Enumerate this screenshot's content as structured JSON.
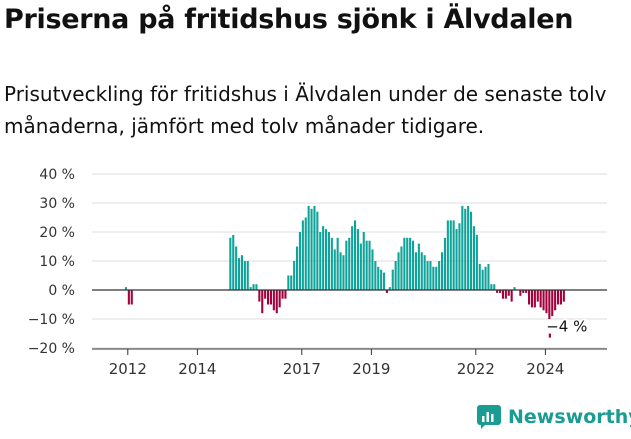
{
  "title": "Priserna på fritidshus sjönk i Älvdalen",
  "subtitle": "Prisutveckling för fritidshus i Älvdalen under de senaste tolv månaderna, jämfört med tolv månader tidigare.",
  "brand": {
    "name": "Newsworthy",
    "icon": "newsworthy-logo-icon"
  },
  "colors": {
    "positive": "#0fa39a",
    "negative": "#a4003d",
    "axis": "#333333",
    "grid": "#dddddd"
  },
  "chart_data": {
    "type": "bar",
    "title": "Priserna på fritidshus sjönk i Älvdalen",
    "subtitle": "Prisutveckling för fritidshus i Älvdalen under de senaste tolv månaderna, jämfört med tolv månader tidigare.",
    "xlabel": "",
    "ylabel": "",
    "ylim": [
      -20,
      40
    ],
    "yticks": [
      -20,
      -10,
      0,
      10,
      20,
      30,
      40
    ],
    "ytick_labels": [
      "−20 %",
      "−10 %",
      "0 %",
      "10 %",
      "20 %",
      "30 %",
      "40 %"
    ],
    "xticks": [
      2012,
      2014,
      2017,
      2019,
      2022,
      2024
    ],
    "grid": true,
    "legend": "none",
    "annotation": {
      "text": "−4 %",
      "value": -4
    },
    "start_year": 2011,
    "start_month": 1,
    "values": [
      0,
      0,
      0,
      0,
      0,
      0,
      0,
      0,
      0,
      0,
      0,
      1,
      -5,
      -5,
      0,
      0,
      0,
      0,
      0,
      0,
      0,
      0,
      0,
      0,
      0,
      0,
      0,
      0,
      0,
      0,
      0,
      0,
      0,
      0,
      0,
      0,
      0,
      0,
      0,
      0,
      0,
      0,
      0,
      0,
      0,
      0,
      0,
      18,
      19,
      15,
      11,
      12,
      10,
      10,
      1,
      2,
      2,
      -4,
      -8,
      -3,
      -5,
      -5,
      -7,
      -8,
      -6,
      -3,
      -3,
      5,
      5,
      10,
      15,
      20,
      24,
      25,
      29,
      28,
      29,
      27,
      20,
      22,
      21,
      20,
      18,
      14,
      18,
      13,
      12,
      17,
      18,
      22,
      24,
      21,
      16,
      20,
      17,
      17,
      14,
      10,
      8,
      7,
      6,
      -1,
      1,
      7,
      10,
      13,
      15,
      18,
      18,
      18,
      17,
      13,
      16,
      13,
      12,
      10,
      10,
      8,
      8,
      10,
      13,
      18,
      24,
      24,
      24,
      21,
      23,
      29,
      28,
      29,
      27,
      22,
      19,
      9,
      7,
      8,
      9,
      2,
      2,
      -1,
      -1,
      -3,
      -3,
      -2,
      -4,
      1,
      0,
      -2,
      -1,
      -1,
      -5,
      -6,
      -6,
      -4,
      -6,
      -7,
      -8,
      -10,
      -9,
      -7,
      -5,
      -5,
      -4
    ]
  }
}
